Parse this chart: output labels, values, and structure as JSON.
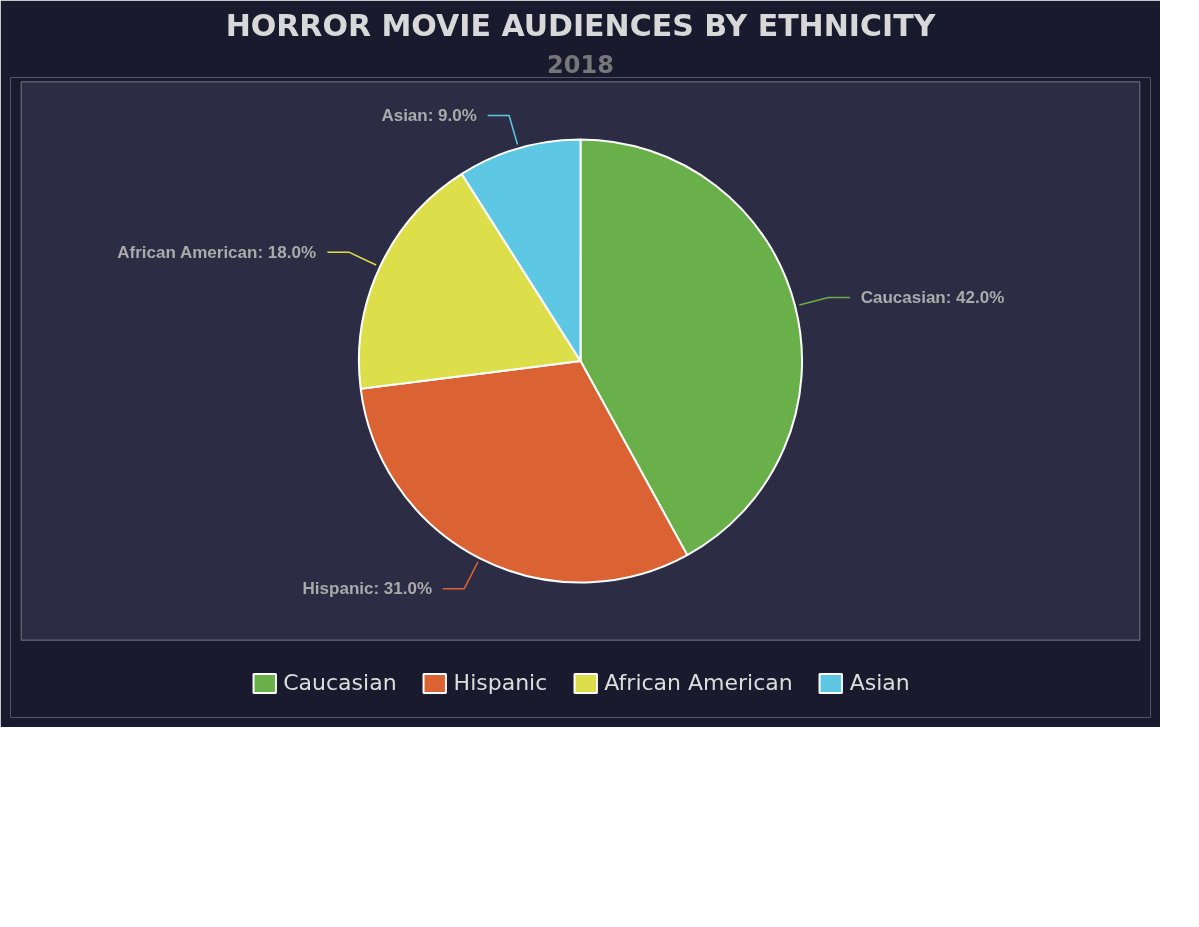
{
  "chart_data": {
    "type": "pie",
    "title": "HORROR MOVIE AUDIENCES BY ETHNICITY",
    "subtitle": "2018",
    "categories": [
      "Caucasian",
      "Hispanic",
      "African American",
      "Asian"
    ],
    "values": [
      42,
      31,
      18,
      9
    ],
    "colors": [
      "#6ab04a",
      "#db6232",
      "#dddf4a",
      "#5ec8e4"
    ],
    "value_labels": [
      "Caucasian: 42.0%",
      "Hispanic: 31.0%",
      "African American: 18.0%",
      "Asian: 9.0%"
    ],
    "legend": "bottom"
  }
}
